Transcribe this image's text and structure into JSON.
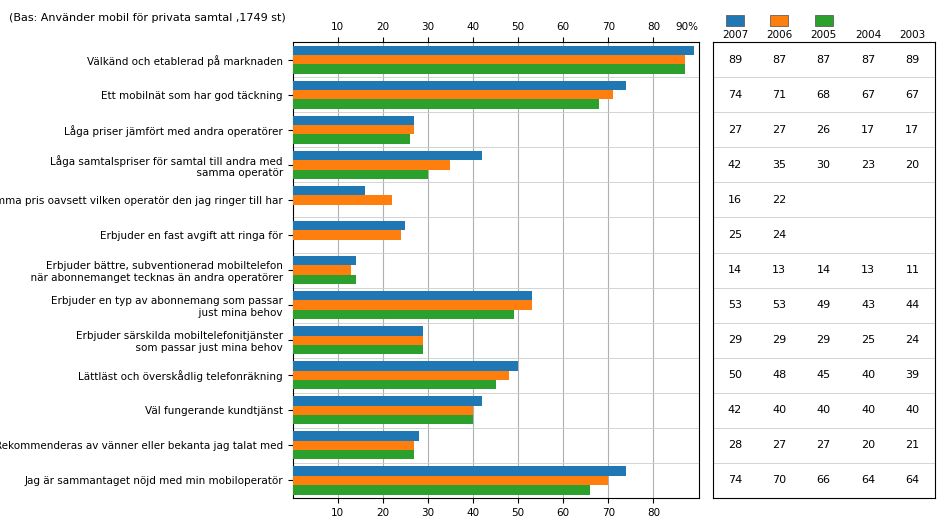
{
  "chart_data": {
    "type": "bar",
    "orientation": "horizontal",
    "subtitle": "(Bas: Använder mobil för privata samtal ,1749 st)",
    "categories": [
      "Välkänd och etablerad på marknaden",
      "Ett mobilnät som har god täckning",
      "Låga priser jämfört med andra operatörer",
      "Låga samtalspriser för samtal till andra med\n  samma operatör",
      "Samma pris oavsett vilken operatör den jag ringer till har",
      "Erbjuder en fast avgift att ringa för",
      "Erbjuder bättre, subventionerad mobiltelefon\n  när abonnemanget tecknas än andra operatörer",
      "Erbjuder en typ av abonnemang som passar\n  just mina behov",
      "Erbjuder särskilda mobiltelefonitjänster\n  som passar just mina behov",
      "Lättläst och överskådlig telefonräkning",
      "Väl fungerande kundtjänst",
      "Rekommenderas av vänner eller bekanta jag talat med",
      "Jag är sammantaget nöjd med min mobiloperatör"
    ],
    "series": [
      {
        "name": "2007",
        "type": "bar",
        "values": [
          89,
          74,
          27,
          42,
          16,
          25,
          14,
          53,
          29,
          50,
          42,
          28,
          74
        ]
      },
      {
        "name": "2006",
        "type": "bar",
        "values": [
          87,
          71,
          27,
          35,
          22,
          24,
          13,
          53,
          29,
          48,
          40,
          27,
          70
        ]
      },
      {
        "name": "2005",
        "type": "bar",
        "values": [
          87,
          68,
          26,
          30,
          null,
          null,
          14,
          49,
          29,
          45,
          40,
          27,
          66
        ]
      },
      {
        "name": "2004",
        "type": "table",
        "values": [
          87,
          67,
          17,
          23,
          null,
          null,
          13,
          43,
          25,
          40,
          40,
          20,
          64
        ]
      },
      {
        "name": "2003",
        "type": "table",
        "values": [
          89,
          67,
          17,
          20,
          null,
          null,
          11,
          44,
          24,
          39,
          40,
          21,
          64
        ]
      }
    ],
    "xlim": [
      0,
      90
    ],
    "xticks": [
      10,
      20,
      30,
      40,
      50,
      60,
      70,
      80
    ],
    "grid": true,
    "data_labels": true,
    "annotations": [
      {
        "text": "90%",
        "x": 90
      }
    ]
  }
}
